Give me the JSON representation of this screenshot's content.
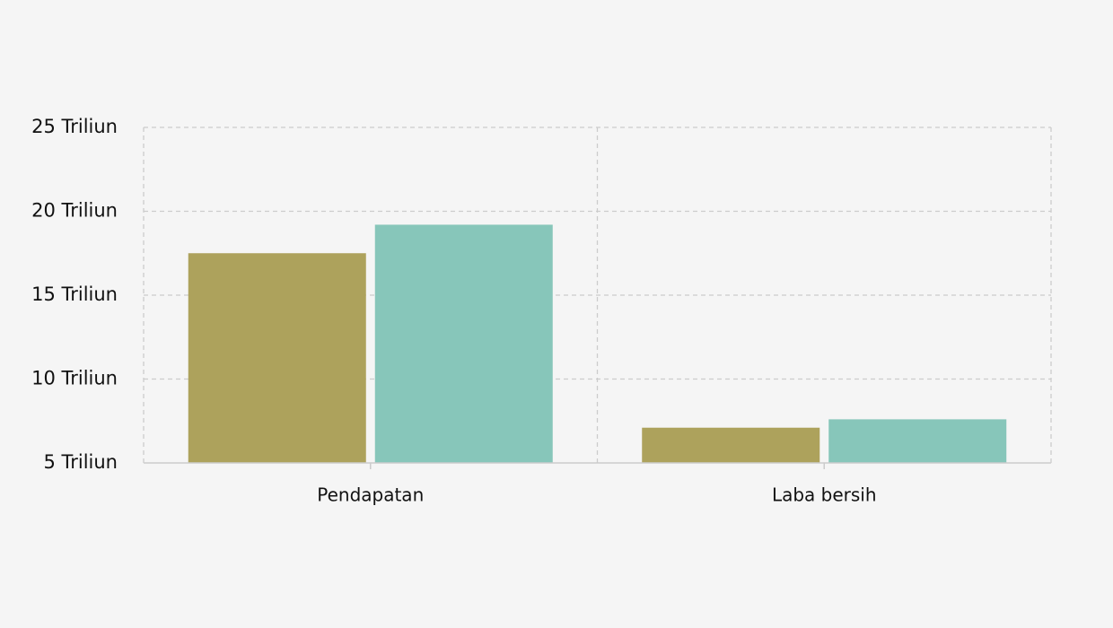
{
  "chart_data": {
    "type": "bar",
    "title": "",
    "xlabel": "",
    "ylabel": "",
    "categories": [
      "Pendapatan",
      "Laba bersih"
    ],
    "series": [
      {
        "values": [
          17.5,
          7.1
        ],
        "color": "#ada25c"
      },
      {
        "values": [
          19.2,
          7.6
        ],
        "color": "#87c6ba"
      }
    ],
    "ylim": [
      5,
      25
    ],
    "yticks": [
      5,
      10,
      15,
      20,
      25
    ],
    "ytick_labels": [
      "5 Triliun",
      "10 Triliun",
      "15 Triliun",
      "20 Triliun",
      "25 Triliun"
    ],
    "grid": true,
    "legend": "none",
    "colors": {
      "background": "#f5f5f5",
      "grid": "#cccccc",
      "axis": "#cccccc"
    }
  }
}
